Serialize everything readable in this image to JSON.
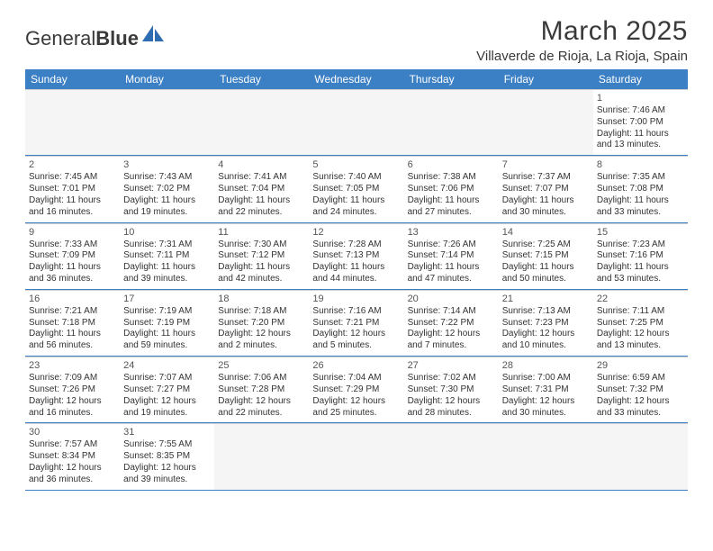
{
  "logo": {
    "part1": "General",
    "part2": "Blue"
  },
  "title": "March 2025",
  "location": "Villaverde de Rioja, La Rioja, Spain",
  "colors": {
    "header_bg": "#3b7fc4",
    "header_text": "#ffffff",
    "cell_border": "#3b7fc4",
    "empty_bg": "#f5f5f5",
    "text": "#333333",
    "logo_blue": "#2f6db3"
  },
  "weekdays": [
    "Sunday",
    "Monday",
    "Tuesday",
    "Wednesday",
    "Thursday",
    "Friday",
    "Saturday"
  ],
  "weeks": [
    [
      {
        "empty": true
      },
      {
        "empty": true
      },
      {
        "empty": true
      },
      {
        "empty": true
      },
      {
        "empty": true
      },
      {
        "empty": true
      },
      {
        "n": "1",
        "sr": "Sunrise: 7:46 AM",
        "ss": "Sunset: 7:00 PM",
        "d1": "Daylight: 11 hours",
        "d2": "and 13 minutes."
      }
    ],
    [
      {
        "n": "2",
        "sr": "Sunrise: 7:45 AM",
        "ss": "Sunset: 7:01 PM",
        "d1": "Daylight: 11 hours",
        "d2": "and 16 minutes."
      },
      {
        "n": "3",
        "sr": "Sunrise: 7:43 AM",
        "ss": "Sunset: 7:02 PM",
        "d1": "Daylight: 11 hours",
        "d2": "and 19 minutes."
      },
      {
        "n": "4",
        "sr": "Sunrise: 7:41 AM",
        "ss": "Sunset: 7:04 PM",
        "d1": "Daylight: 11 hours",
        "d2": "and 22 minutes."
      },
      {
        "n": "5",
        "sr": "Sunrise: 7:40 AM",
        "ss": "Sunset: 7:05 PM",
        "d1": "Daylight: 11 hours",
        "d2": "and 24 minutes."
      },
      {
        "n": "6",
        "sr": "Sunrise: 7:38 AM",
        "ss": "Sunset: 7:06 PM",
        "d1": "Daylight: 11 hours",
        "d2": "and 27 minutes."
      },
      {
        "n": "7",
        "sr": "Sunrise: 7:37 AM",
        "ss": "Sunset: 7:07 PM",
        "d1": "Daylight: 11 hours",
        "d2": "and 30 minutes."
      },
      {
        "n": "8",
        "sr": "Sunrise: 7:35 AM",
        "ss": "Sunset: 7:08 PM",
        "d1": "Daylight: 11 hours",
        "d2": "and 33 minutes."
      }
    ],
    [
      {
        "n": "9",
        "sr": "Sunrise: 7:33 AM",
        "ss": "Sunset: 7:09 PM",
        "d1": "Daylight: 11 hours",
        "d2": "and 36 minutes."
      },
      {
        "n": "10",
        "sr": "Sunrise: 7:31 AM",
        "ss": "Sunset: 7:11 PM",
        "d1": "Daylight: 11 hours",
        "d2": "and 39 minutes."
      },
      {
        "n": "11",
        "sr": "Sunrise: 7:30 AM",
        "ss": "Sunset: 7:12 PM",
        "d1": "Daylight: 11 hours",
        "d2": "and 42 minutes."
      },
      {
        "n": "12",
        "sr": "Sunrise: 7:28 AM",
        "ss": "Sunset: 7:13 PM",
        "d1": "Daylight: 11 hours",
        "d2": "and 44 minutes."
      },
      {
        "n": "13",
        "sr": "Sunrise: 7:26 AM",
        "ss": "Sunset: 7:14 PM",
        "d1": "Daylight: 11 hours",
        "d2": "and 47 minutes."
      },
      {
        "n": "14",
        "sr": "Sunrise: 7:25 AM",
        "ss": "Sunset: 7:15 PM",
        "d1": "Daylight: 11 hours",
        "d2": "and 50 minutes."
      },
      {
        "n": "15",
        "sr": "Sunrise: 7:23 AM",
        "ss": "Sunset: 7:16 PM",
        "d1": "Daylight: 11 hours",
        "d2": "and 53 minutes."
      }
    ],
    [
      {
        "n": "16",
        "sr": "Sunrise: 7:21 AM",
        "ss": "Sunset: 7:18 PM",
        "d1": "Daylight: 11 hours",
        "d2": "and 56 minutes."
      },
      {
        "n": "17",
        "sr": "Sunrise: 7:19 AM",
        "ss": "Sunset: 7:19 PM",
        "d1": "Daylight: 11 hours",
        "d2": "and 59 minutes."
      },
      {
        "n": "18",
        "sr": "Sunrise: 7:18 AM",
        "ss": "Sunset: 7:20 PM",
        "d1": "Daylight: 12 hours",
        "d2": "and 2 minutes."
      },
      {
        "n": "19",
        "sr": "Sunrise: 7:16 AM",
        "ss": "Sunset: 7:21 PM",
        "d1": "Daylight: 12 hours",
        "d2": "and 5 minutes."
      },
      {
        "n": "20",
        "sr": "Sunrise: 7:14 AM",
        "ss": "Sunset: 7:22 PM",
        "d1": "Daylight: 12 hours",
        "d2": "and 7 minutes."
      },
      {
        "n": "21",
        "sr": "Sunrise: 7:13 AM",
        "ss": "Sunset: 7:23 PM",
        "d1": "Daylight: 12 hours",
        "d2": "and 10 minutes."
      },
      {
        "n": "22",
        "sr": "Sunrise: 7:11 AM",
        "ss": "Sunset: 7:25 PM",
        "d1": "Daylight: 12 hours",
        "d2": "and 13 minutes."
      }
    ],
    [
      {
        "n": "23",
        "sr": "Sunrise: 7:09 AM",
        "ss": "Sunset: 7:26 PM",
        "d1": "Daylight: 12 hours",
        "d2": "and 16 minutes."
      },
      {
        "n": "24",
        "sr": "Sunrise: 7:07 AM",
        "ss": "Sunset: 7:27 PM",
        "d1": "Daylight: 12 hours",
        "d2": "and 19 minutes."
      },
      {
        "n": "25",
        "sr": "Sunrise: 7:06 AM",
        "ss": "Sunset: 7:28 PM",
        "d1": "Daylight: 12 hours",
        "d2": "and 22 minutes."
      },
      {
        "n": "26",
        "sr": "Sunrise: 7:04 AM",
        "ss": "Sunset: 7:29 PM",
        "d1": "Daylight: 12 hours",
        "d2": "and 25 minutes."
      },
      {
        "n": "27",
        "sr": "Sunrise: 7:02 AM",
        "ss": "Sunset: 7:30 PM",
        "d1": "Daylight: 12 hours",
        "d2": "and 28 minutes."
      },
      {
        "n": "28",
        "sr": "Sunrise: 7:00 AM",
        "ss": "Sunset: 7:31 PM",
        "d1": "Daylight: 12 hours",
        "d2": "and 30 minutes."
      },
      {
        "n": "29",
        "sr": "Sunrise: 6:59 AM",
        "ss": "Sunset: 7:32 PM",
        "d1": "Daylight: 12 hours",
        "d2": "and 33 minutes."
      }
    ],
    [
      {
        "n": "30",
        "sr": "Sunrise: 7:57 AM",
        "ss": "Sunset: 8:34 PM",
        "d1": "Daylight: 12 hours",
        "d2": "and 36 minutes."
      },
      {
        "n": "31",
        "sr": "Sunrise: 7:55 AM",
        "ss": "Sunset: 8:35 PM",
        "d1": "Daylight: 12 hours",
        "d2": "and 39 minutes."
      },
      {
        "empty": true
      },
      {
        "empty": true
      },
      {
        "empty": true
      },
      {
        "empty": true
      },
      {
        "empty": true
      }
    ]
  ]
}
